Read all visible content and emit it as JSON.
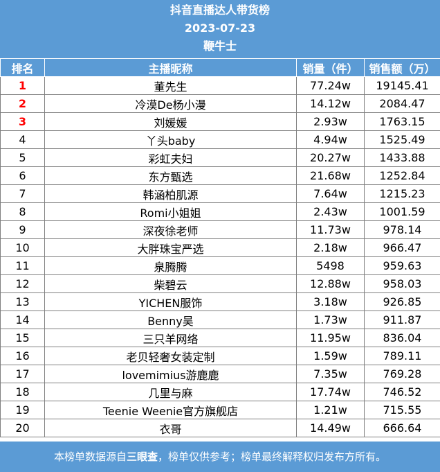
{
  "header": {
    "title": "抖音直播达人带货榜",
    "date": "2023-07-23",
    "source_name": "鞭牛士"
  },
  "columns": {
    "rank": "排名",
    "name": "主播昵称",
    "sales_volume": "销量（件）",
    "sales_amount": "销售额（万）"
  },
  "rows": [
    {
      "rank": "1",
      "name": "董先生",
      "volume": "77.24w",
      "amount": "19145.41"
    },
    {
      "rank": "2",
      "name": "冷漠De杨小漫",
      "volume": "14.12w",
      "amount": "2084.47"
    },
    {
      "rank": "3",
      "name": "刘媛媛",
      "volume": "2.93w",
      "amount": "1763.15"
    },
    {
      "rank": "4",
      "name": "丫头baby",
      "volume": "4.94w",
      "amount": "1525.49"
    },
    {
      "rank": "5",
      "name": "彩虹夫妇",
      "volume": "20.27w",
      "amount": "1433.88"
    },
    {
      "rank": "6",
      "name": "东方甄选",
      "volume": "21.68w",
      "amount": "1252.84"
    },
    {
      "rank": "7",
      "name": "韩涵柏肌源",
      "volume": "7.64w",
      "amount": "1215.23"
    },
    {
      "rank": "8",
      "name": "Romi小姐姐",
      "volume": "2.43w",
      "amount": "1001.59"
    },
    {
      "rank": "9",
      "name": "深夜徐老师",
      "volume": "11.73w",
      "amount": "978.14"
    },
    {
      "rank": "10",
      "name": "大胖珠宝严选",
      "volume": "2.18w",
      "amount": "966.47"
    },
    {
      "rank": "11",
      "name": "泉腾腾",
      "volume": "5498",
      "amount": "959.63"
    },
    {
      "rank": "12",
      "name": "柴碧云",
      "volume": "12.88w",
      "amount": "958.03"
    },
    {
      "rank": "13",
      "name": "YICHEN服饰",
      "volume": "3.18w",
      "amount": "926.85"
    },
    {
      "rank": "14",
      "name": "Benny吴",
      "volume": "1.73w",
      "amount": "911.87"
    },
    {
      "rank": "15",
      "name": "三只羊网络",
      "volume": "11.95w",
      "amount": "836.04"
    },
    {
      "rank": "16",
      "name": "老贝轻奢女装定制",
      "volume": "1.59w",
      "amount": "789.11"
    },
    {
      "rank": "17",
      "name": "lovemimius游鹿鹿",
      "volume": "7.35w",
      "amount": "769.28"
    },
    {
      "rank": "18",
      "name": "几里与麻",
      "volume": "17.74w",
      "amount": "746.52"
    },
    {
      "rank": "19",
      "name": "Teenie Weenie官方旗舰店",
      "volume": "1.21w",
      "amount": "715.55"
    },
    {
      "rank": "20",
      "name": "衣哥",
      "volume": "14.49w",
      "amount": "666.64"
    }
  ],
  "footer": {
    "prefix": "本榜单数据源自",
    "source": "三眼查",
    "suffix": "，榜单仅供参考；榜单最终解释权归发布方所有。"
  },
  "colors": {
    "header_bg": "#5b9bd5",
    "top_rank": "#ff0000"
  }
}
